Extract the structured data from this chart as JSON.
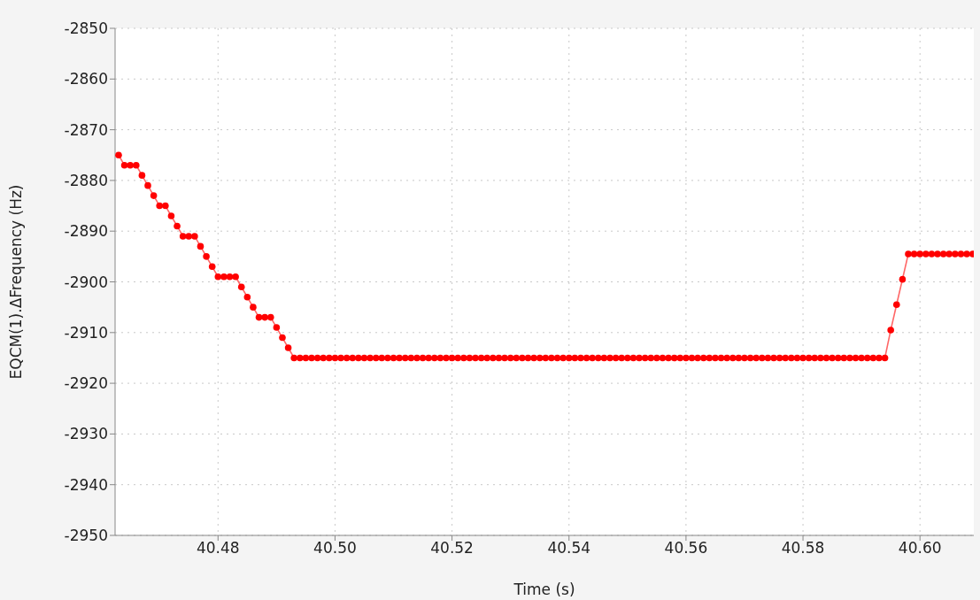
{
  "chart_data": {
    "type": "line",
    "xlabel": "Time (s)",
    "ylabel": "EQCM(1).ΔFrequency (Hz)",
    "xlim": [
      40.4624,
      40.6092
    ],
    "xticks": [
      40.48,
      {
        "value": 40.5,
        "label": "40.50"
      },
      40.52,
      40.54,
      40.56,
      40.58,
      {
        "value": 40.6,
        "label": "40.60"
      }
    ],
    "ylim": [
      -2950,
      -2850
    ],
    "yticks": [
      -2850,
      -2860,
      -2870,
      -2880,
      -2890,
      -2900,
      -2910,
      -2920,
      -2930,
      -2940,
      -2950
    ],
    "grid": true,
    "legend": false,
    "marker": "circle",
    "line_style": "solid",
    "series": [
      {
        "color": "#ff0000",
        "x": [
          40.463,
          40.464,
          40.465,
          40.466,
          40.467,
          40.468,
          40.469,
          40.47,
          40.471,
          40.472,
          40.473,
          40.474,
          40.475,
          40.476,
          40.477,
          40.478,
          40.479,
          40.48,
          40.481,
          40.482,
          40.483,
          40.484,
          40.485,
          40.486,
          40.487,
          40.488,
          40.489,
          40.49,
          40.491,
          40.492,
          40.493,
          40.494,
          40.495,
          40.496,
          40.497,
          40.498,
          40.499,
          40.5,
          40.501,
          40.502,
          40.503,
          40.504,
          40.505,
          40.506,
          40.507,
          40.508,
          40.509,
          40.51,
          40.511,
          40.512,
          40.513,
          40.514,
          40.515,
          40.516,
          40.517,
          40.518,
          40.519,
          40.52,
          40.521,
          40.522,
          40.523,
          40.524,
          40.525,
          40.526,
          40.527,
          40.528,
          40.529,
          40.53,
          40.531,
          40.532,
          40.533,
          40.534,
          40.535,
          40.536,
          40.537,
          40.538,
          40.539,
          40.54,
          40.541,
          40.542,
          40.543,
          40.544,
          40.545,
          40.546,
          40.547,
          40.548,
          40.549,
          40.55,
          40.551,
          40.552,
          40.553,
          40.554,
          40.555,
          40.556,
          40.557,
          40.558,
          40.559,
          40.56,
          40.561,
          40.562,
          40.563,
          40.564,
          40.565,
          40.566,
          40.567,
          40.568,
          40.569,
          40.57,
          40.571,
          40.572,
          40.573,
          40.574,
          40.575,
          40.576,
          40.577,
          40.578,
          40.579,
          40.58,
          40.581,
          40.582,
          40.583,
          40.584,
          40.585,
          40.586,
          40.587,
          40.588,
          40.589,
          40.59,
          40.591,
          40.592,
          40.593,
          40.594,
          40.595,
          40.596,
          40.597,
          40.598,
          40.599,
          40.6,
          40.601,
          40.602,
          40.603,
          40.604,
          40.605,
          40.606,
          40.607,
          40.608,
          40.609
        ],
        "values": [
          -2875,
          -2877,
          -2877,
          -2877,
          -2879,
          -2881,
          -2883,
          -2885,
          -2885,
          -2887,
          -2889,
          -2891,
          -2891,
          -2891,
          -2893,
          -2895,
          -2897,
          -2899,
          -2899,
          -2899,
          -2899,
          -2901,
          -2903,
          -2905,
          -2907,
          -2907,
          -2907,
          -2909,
          -2911,
          -2913,
          -2915,
          -2915,
          -2915,
          -2915,
          -2915,
          -2915,
          -2915,
          -2915,
          -2915,
          -2915,
          -2915,
          -2915,
          -2915,
          -2915,
          -2915,
          -2915,
          -2915,
          -2915,
          -2915,
          -2915,
          -2915,
          -2915,
          -2915,
          -2915,
          -2915,
          -2915,
          -2915,
          -2915,
          -2915,
          -2915,
          -2915,
          -2915,
          -2915,
          -2915,
          -2915,
          -2915,
          -2915,
          -2915,
          -2915,
          -2915,
          -2915,
          -2915,
          -2915,
          -2915,
          -2915,
          -2915,
          -2915,
          -2915,
          -2915,
          -2915,
          -2915,
          -2915,
          -2915,
          -2915,
          -2915,
          -2915,
          -2915,
          -2915,
          -2915,
          -2915,
          -2915,
          -2915,
          -2915,
          -2915,
          -2915,
          -2915,
          -2915,
          -2915,
          -2915,
          -2915,
          -2915,
          -2915,
          -2915,
          -2915,
          -2915,
          -2915,
          -2915,
          -2915,
          -2915,
          -2915,
          -2915,
          -2915,
          -2915,
          -2915,
          -2915,
          -2915,
          -2915,
          -2915,
          -2915,
          -2915,
          -2915,
          -2915,
          -2915,
          -2915,
          -2915,
          -2915,
          -2915,
          -2915,
          -2915,
          -2915,
          -2915,
          -2915,
          -2909.5,
          -2904.5,
          -2899.5,
          -2894.5,
          -2894.5,
          -2894.5,
          -2894.5,
          -2894.5,
          -2894.5,
          -2894.5,
          -2894.5,
          -2894.5,
          -2894.5,
          -2894.5,
          -2894.5
        ]
      }
    ]
  }
}
